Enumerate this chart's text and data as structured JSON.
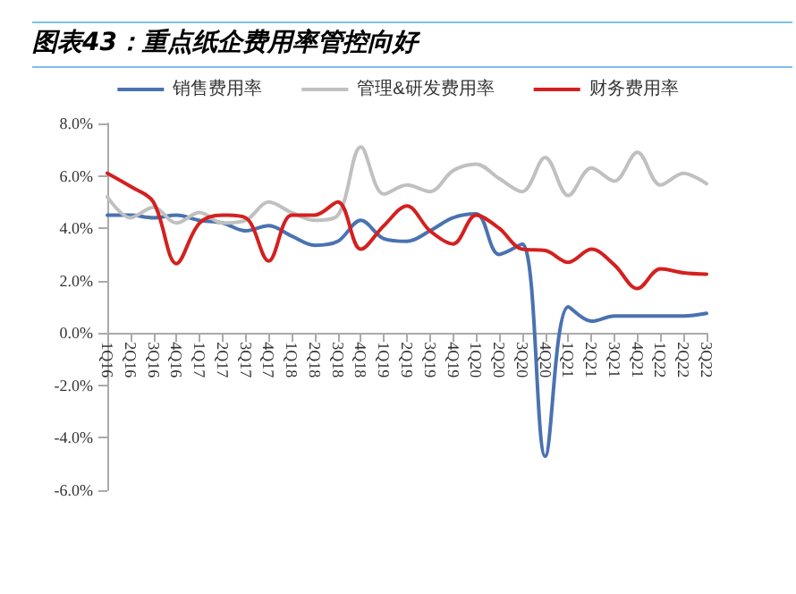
{
  "chart_data": {
    "type": "line",
    "title": "图表43：重点纸企费用率管控向好",
    "categories": [
      "1Q16",
      "2Q16",
      "3Q16",
      "4Q16",
      "1Q17",
      "2Q17",
      "3Q17",
      "4Q17",
      "1Q18",
      "2Q18",
      "3Q18",
      "4Q18",
      "1Q19",
      "2Q19",
      "3Q19",
      "4Q19",
      "1Q20",
      "2Q20",
      "3Q20",
      "4Q20",
      "1Q21",
      "2Q21",
      "3Q21",
      "4Q21",
      "1Q22",
      "2Q22",
      "3Q22"
    ],
    "series": [
      {
        "name": "销售费用率",
        "color": "#4a72b0",
        "values": [
          4.5,
          4.5,
          4.4,
          4.5,
          4.3,
          4.2,
          3.9,
          4.1,
          3.7,
          3.35,
          3.5,
          4.3,
          3.6,
          3.5,
          3.9,
          4.4,
          4.55,
          3.0,
          3.4,
          -4.7,
          1.0,
          0.45,
          0.65,
          0.65,
          0.65,
          0.65,
          0.75
        ]
      },
      {
        "name": "管理&研发费用率",
        "color": "#c0c0c0",
        "values": [
          5.2,
          4.4,
          4.8,
          4.2,
          4.6,
          4.2,
          4.3,
          5.0,
          4.6,
          4.3,
          4.5,
          7.1,
          5.3,
          5.65,
          5.4,
          6.2,
          6.45,
          5.9,
          5.4,
          6.7,
          5.25,
          6.3,
          5.8,
          6.9,
          5.65,
          6.1,
          5.7
        ]
      },
      {
        "name": "财务费用率",
        "color": "#d42020",
        "values": [
          6.1,
          5.6,
          5.0,
          2.65,
          4.2,
          4.5,
          4.4,
          2.75,
          4.5,
          4.5,
          5.0,
          3.2,
          4.1,
          4.85,
          3.9,
          3.4,
          4.5,
          4.0,
          3.2,
          3.15,
          2.7,
          3.2,
          2.6,
          1.7,
          2.45,
          2.3,
          2.25
        ]
      }
    ],
    "ylim": [
      -6,
      8
    ],
    "yticks": [
      {
        "value": -6,
        "label": "-6.0%"
      },
      {
        "value": -4,
        "label": "-4.0%"
      },
      {
        "value": -2,
        "label": "-2.0%"
      },
      {
        "value": 0,
        "label": "0.0%"
      },
      {
        "value": 2,
        "label": "2.0%"
      },
      {
        "value": 4,
        "label": "4.0%"
      },
      {
        "value": 6,
        "label": "6.0%"
      },
      {
        "value": 8,
        "label": "8.0%"
      }
    ],
    "grid": false,
    "legend": "top",
    "marker": "none",
    "line_style": "solid"
  }
}
